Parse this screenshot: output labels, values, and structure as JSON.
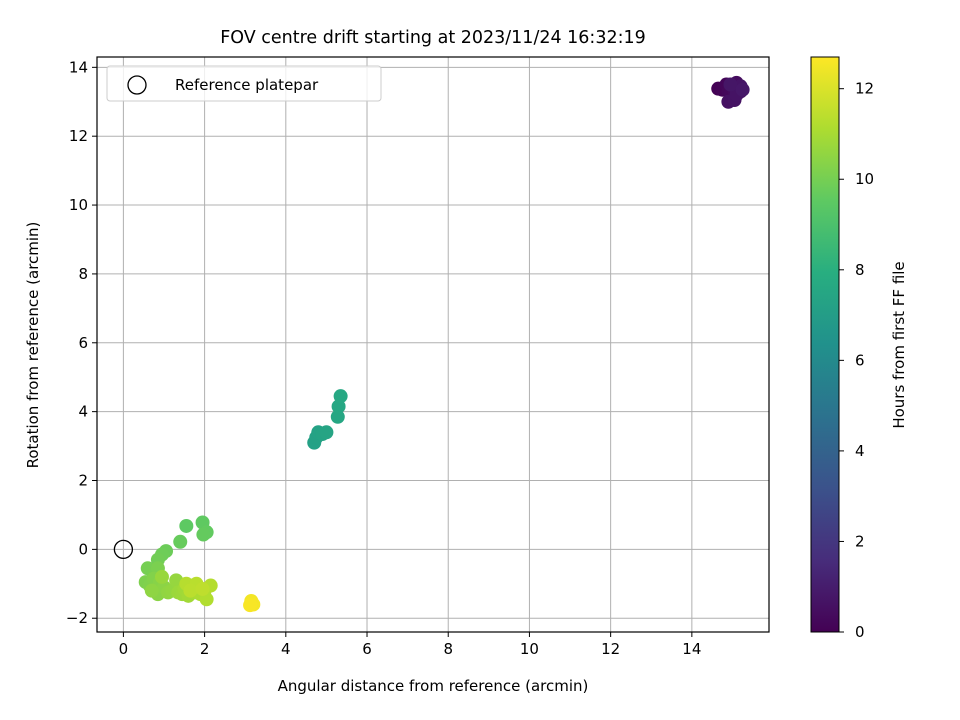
{
  "chart_data": {
    "type": "scatter",
    "title": "FOV centre drift starting at 2023/11/24 16:32:19",
    "xlabel": "Angular distance from reference (arcmin)",
    "ylabel": "Rotation from reference (arcmin)",
    "xlim": [
      -0.65,
      15.9
    ],
    "ylim": [
      -2.4,
      14.3
    ],
    "xticks": [
      0,
      2,
      4,
      6,
      8,
      10,
      12,
      14
    ],
    "yticks": [
      -2,
      0,
      2,
      4,
      6,
      8,
      10,
      12,
      14
    ],
    "grid": true,
    "legend": {
      "placement": "top-left",
      "entries": [
        {
          "label": "Reference platepar",
          "marker": "open-circle"
        }
      ]
    },
    "reference_point": {
      "x": 0,
      "y": 0
    },
    "colorbar": {
      "label": "Hours from first FF file",
      "range": [
        0,
        12.7
      ],
      "ticks": [
        0,
        2,
        4,
        6,
        8,
        10,
        12
      ],
      "colormap": "viridis"
    },
    "points": [
      {
        "x": 14.65,
        "y": 13.38,
        "c": 0.05
      },
      {
        "x": 14.75,
        "y": 13.35,
        "c": 0.1
      },
      {
        "x": 14.85,
        "y": 13.5,
        "c": 0.15
      },
      {
        "x": 14.9,
        "y": 13.3,
        "c": 0.2
      },
      {
        "x": 14.95,
        "y": 13.2,
        "c": 0.25
      },
      {
        "x": 15.0,
        "y": 13.45,
        "c": 0.3
      },
      {
        "x": 15.05,
        "y": 13.3,
        "c": 0.35
      },
      {
        "x": 15.1,
        "y": 13.55,
        "c": 0.4
      },
      {
        "x": 15.15,
        "y": 13.4,
        "c": 0.45
      },
      {
        "x": 15.2,
        "y": 13.3,
        "c": 0.5
      },
      {
        "x": 14.9,
        "y": 13.0,
        "c": 0.55
      },
      {
        "x": 15.05,
        "y": 13.05,
        "c": 0.6
      },
      {
        "x": 15.1,
        "y": 13.2,
        "c": 0.65
      },
      {
        "x": 15.2,
        "y": 13.45,
        "c": 0.7
      },
      {
        "x": 14.95,
        "y": 13.5,
        "c": 0.75
      },
      {
        "x": 15.25,
        "y": 13.35,
        "c": 0.8
      },
      {
        "x": 4.7,
        "y": 3.1,
        "c": 7.2
      },
      {
        "x": 4.75,
        "y": 3.25,
        "c": 7.25
      },
      {
        "x": 4.8,
        "y": 3.4,
        "c": 7.3
      },
      {
        "x": 4.9,
        "y": 3.35,
        "c": 7.35
      },
      {
        "x": 5.0,
        "y": 3.4,
        "c": 7.4
      },
      {
        "x": 5.28,
        "y": 3.85,
        "c": 7.5
      },
      {
        "x": 5.3,
        "y": 4.15,
        "c": 7.55
      },
      {
        "x": 5.35,
        "y": 4.45,
        "c": 7.6
      },
      {
        "x": 1.55,
        "y": 0.68,
        "c": 9.5
      },
      {
        "x": 1.95,
        "y": 0.78,
        "c": 9.55
      },
      {
        "x": 2.05,
        "y": 0.5,
        "c": 9.6
      },
      {
        "x": 1.97,
        "y": 0.43,
        "c": 9.65
      },
      {
        "x": 1.4,
        "y": 0.22,
        "c": 9.7
      },
      {
        "x": 1.05,
        "y": -0.05,
        "c": 9.8
      },
      {
        "x": 0.95,
        "y": -0.15,
        "c": 9.85
      },
      {
        "x": 0.85,
        "y": -0.3,
        "c": 9.9
      },
      {
        "x": 0.6,
        "y": -0.55,
        "c": 10.0
      },
      {
        "x": 0.75,
        "y": -0.7,
        "c": 10.05
      },
      {
        "x": 0.85,
        "y": -0.55,
        "c": 10.1
      },
      {
        "x": 0.55,
        "y": -0.95,
        "c": 10.15
      },
      {
        "x": 0.65,
        "y": -1.05,
        "c": 10.2
      },
      {
        "x": 0.75,
        "y": -0.85,
        "c": 10.25
      },
      {
        "x": 0.8,
        "y": -1.15,
        "c": 10.3
      },
      {
        "x": 0.9,
        "y": -0.95,
        "c": 10.35
      },
      {
        "x": 0.85,
        "y": -1.3,
        "c": 10.4
      },
      {
        "x": 1.0,
        "y": -1.1,
        "c": 10.45
      },
      {
        "x": 0.7,
        "y": -1.2,
        "c": 10.5
      },
      {
        "x": 1.1,
        "y": -1.25,
        "c": 10.55
      },
      {
        "x": 1.2,
        "y": -1.2,
        "c": 10.6
      },
      {
        "x": 1.3,
        "y": -0.9,
        "c": 10.65
      },
      {
        "x": 0.95,
        "y": -0.8,
        "c": 10.7
      },
      {
        "x": 1.35,
        "y": -1.25,
        "c": 10.75
      },
      {
        "x": 1.45,
        "y": -1.3,
        "c": 10.8
      },
      {
        "x": 1.5,
        "y": -1.15,
        "c": 10.85
      },
      {
        "x": 1.6,
        "y": -1.35,
        "c": 10.9
      },
      {
        "x": 1.7,
        "y": -1.05,
        "c": 10.95
      },
      {
        "x": 1.75,
        "y": -1.25,
        "c": 11.0
      },
      {
        "x": 1.85,
        "y": -1.1,
        "c": 11.05
      },
      {
        "x": 1.9,
        "y": -1.3,
        "c": 11.1
      },
      {
        "x": 2.0,
        "y": -1.2,
        "c": 11.15
      },
      {
        "x": 2.05,
        "y": -1.45,
        "c": 11.2
      },
      {
        "x": 2.15,
        "y": -1.05,
        "c": 11.25
      },
      {
        "x": 1.55,
        "y": -1.0,
        "c": 11.3
      },
      {
        "x": 1.8,
        "y": -1.0,
        "c": 11.35
      },
      {
        "x": 1.65,
        "y": -1.2,
        "c": 11.4
      },
      {
        "x": 1.95,
        "y": -1.15,
        "c": 11.45
      },
      {
        "x": 3.15,
        "y": -1.5,
        "c": 12.5
      },
      {
        "x": 3.2,
        "y": -1.6,
        "c": 12.55
      },
      {
        "x": 3.12,
        "y": -1.62,
        "c": 12.6
      }
    ]
  }
}
